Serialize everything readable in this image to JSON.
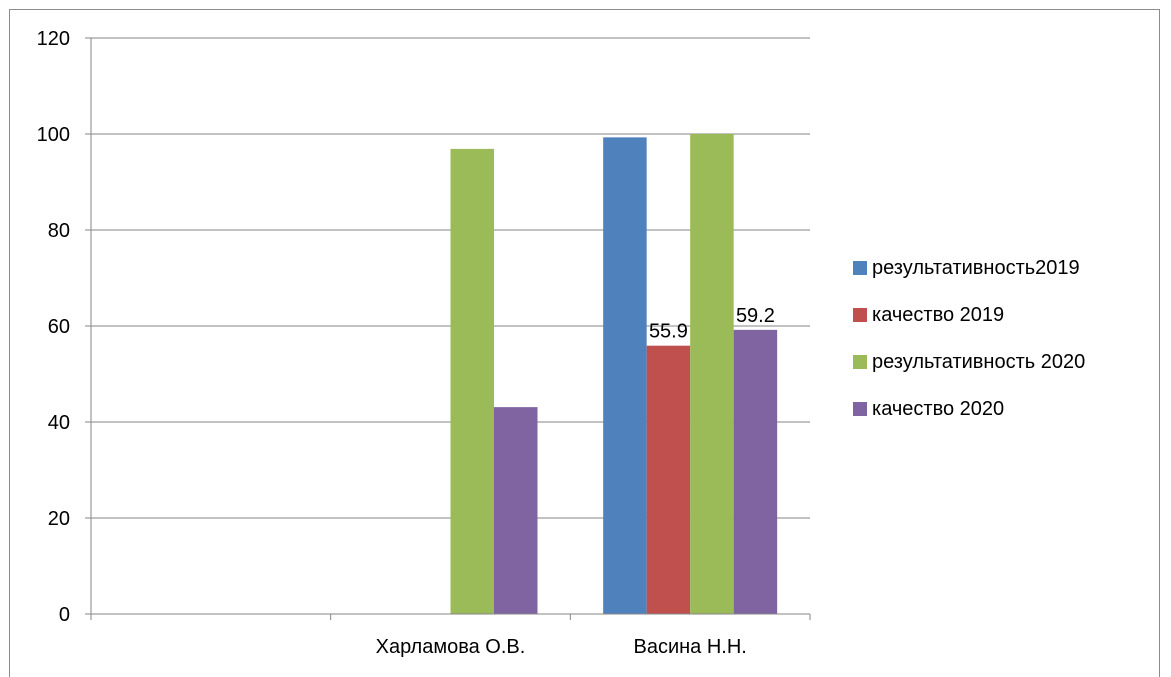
{
  "chart_data": {
    "type": "bar",
    "categories": [
      "",
      "Харламова О.В.",
      "Васина Н.Н."
    ],
    "series": [
      {
        "name": "результативность2019",
        "color": "#4f81bd",
        "values": [
          null,
          null,
          99.3
        ]
      },
      {
        "name": "качество 2019",
        "color": "#c0504d",
        "values": [
          null,
          null,
          55.9
        ]
      },
      {
        "name": "результативность 2020",
        "color": "#9bbb59",
        "values": [
          null,
          96.9,
          100
        ]
      },
      {
        "name": "качество 2020",
        "color": "#8064a2",
        "values": [
          null,
          43.1,
          59.2
        ]
      }
    ],
    "data_labels": [
      {
        "series": 1,
        "category": 2,
        "text": "55.9"
      },
      {
        "series": 3,
        "category": 2,
        "text": "59.2"
      }
    ],
    "y_ticks": [
      "0",
      "20",
      "40",
      "60",
      "80",
      "100",
      "120"
    ],
    "ylim": [
      0,
      120
    ],
    "grid": true,
    "legend_position": "right"
  }
}
